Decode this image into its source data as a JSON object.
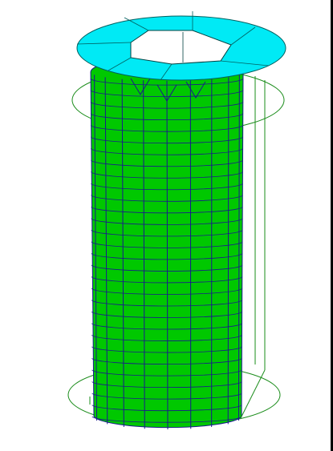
{
  "view": {
    "background_color": "#ffffff",
    "border_color": "#000000"
  },
  "model": {
    "shape": "cylinder-mesh",
    "body_fill_color": "#00c800",
    "body_edge_color": "#1a1a8c",
    "top_washer_color": "#00eaf5",
    "hex_hole_color": "#ffffff",
    "wireframe_color": "#1a8c1a",
    "column_count": 10,
    "row_count": 29
  }
}
